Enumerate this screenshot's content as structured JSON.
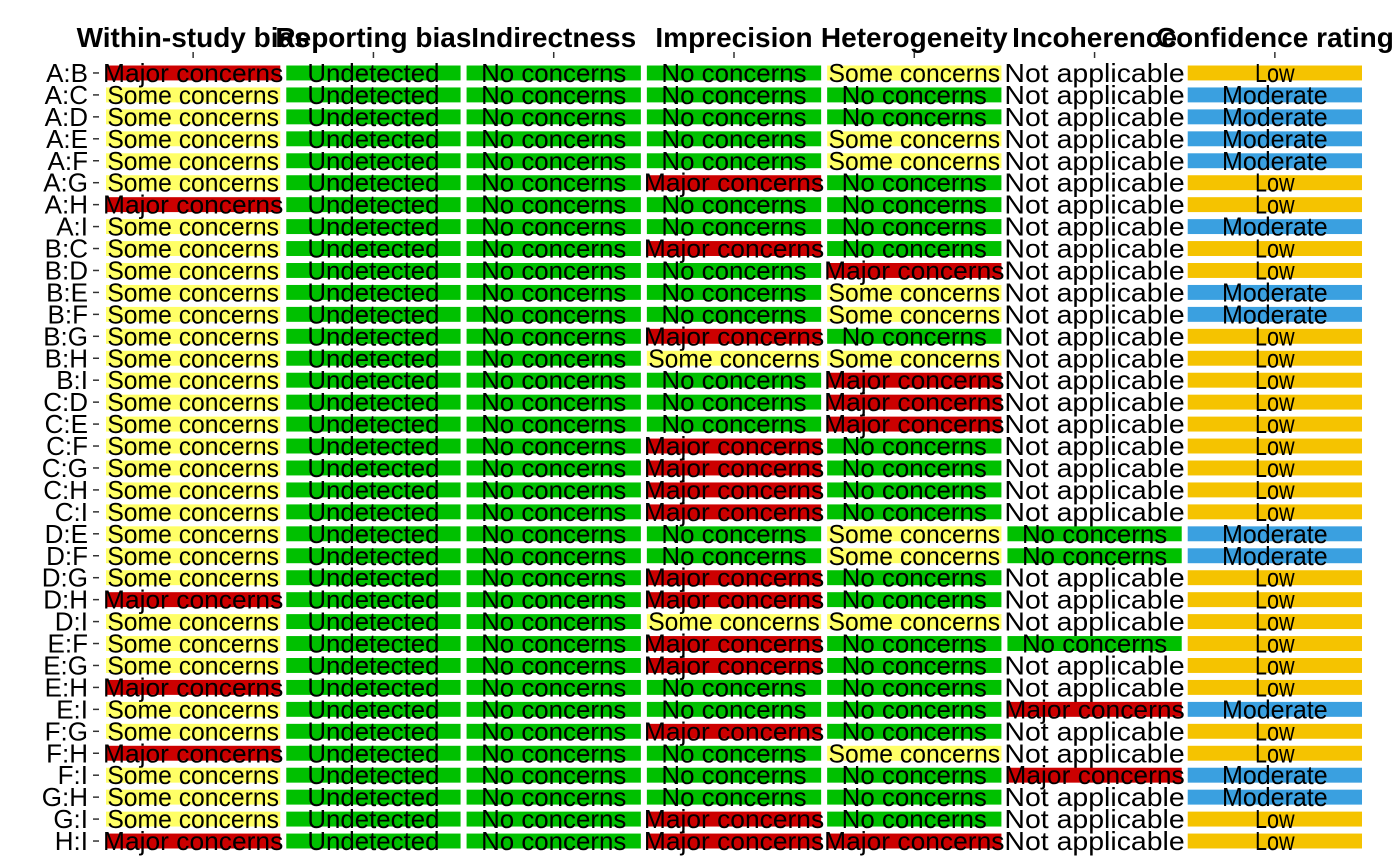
{
  "chart_data": {
    "type": "table",
    "title": "",
    "columns": [
      "Within-study bias",
      "Reporting bias",
      "Indirectness",
      "Imprecision",
      "Heterogeneity",
      "Incoherence",
      "Confidence rating"
    ],
    "level_colors": {
      "Major concerns": "#cc0000",
      "Some concerns": "#ffff66",
      "No concerns": "#00c000",
      "Undetected": "#00c000",
      "Not applicable": "#ffffff",
      "Low": "#f5c300",
      "Moderate": "#3aa0e0"
    },
    "rows": [
      {
        "label": "A:B",
        "values": [
          "Major concerns",
          "Undetected",
          "No concerns",
          "No concerns",
          "Some concerns",
          "Not applicable",
          "Low"
        ]
      },
      {
        "label": "A:C",
        "values": [
          "Some concerns",
          "Undetected",
          "No concerns",
          "No concerns",
          "No concerns",
          "Not applicable",
          "Moderate"
        ]
      },
      {
        "label": "A:D",
        "values": [
          "Some concerns",
          "Undetected",
          "No concerns",
          "No concerns",
          "No concerns",
          "Not applicable",
          "Moderate"
        ]
      },
      {
        "label": "A:E",
        "values": [
          "Some concerns",
          "Undetected",
          "No concerns",
          "No concerns",
          "Some concerns",
          "Not applicable",
          "Moderate"
        ]
      },
      {
        "label": "A:F",
        "values": [
          "Some concerns",
          "Undetected",
          "No concerns",
          "No concerns",
          "Some concerns",
          "Not applicable",
          "Moderate"
        ]
      },
      {
        "label": "A:G",
        "values": [
          "Some concerns",
          "Undetected",
          "No concerns",
          "Major concerns",
          "No concerns",
          "Not applicable",
          "Low"
        ]
      },
      {
        "label": "A:H",
        "values": [
          "Major concerns",
          "Undetected",
          "No concerns",
          "No concerns",
          "No concerns",
          "Not applicable",
          "Low"
        ]
      },
      {
        "label": "A:I",
        "values": [
          "Some concerns",
          "Undetected",
          "No concerns",
          "No concerns",
          "No concerns",
          "Not applicable",
          "Moderate"
        ]
      },
      {
        "label": "B:C",
        "values": [
          "Some concerns",
          "Undetected",
          "No concerns",
          "Major concerns",
          "No concerns",
          "Not applicable",
          "Low"
        ]
      },
      {
        "label": "B:D",
        "values": [
          "Some concerns",
          "Undetected",
          "No concerns",
          "No concerns",
          "Major concerns",
          "Not applicable",
          "Low"
        ]
      },
      {
        "label": "B:E",
        "values": [
          "Some concerns",
          "Undetected",
          "No concerns",
          "No concerns",
          "Some concerns",
          "Not applicable",
          "Moderate"
        ]
      },
      {
        "label": "B:F",
        "values": [
          "Some concerns",
          "Undetected",
          "No concerns",
          "No concerns",
          "Some concerns",
          "Not applicable",
          "Moderate"
        ]
      },
      {
        "label": "B:G",
        "values": [
          "Some concerns",
          "Undetected",
          "No concerns",
          "Major concerns",
          "No concerns",
          "Not applicable",
          "Low"
        ]
      },
      {
        "label": "B:H",
        "values": [
          "Some concerns",
          "Undetected",
          "No concerns",
          "Some concerns",
          "Some concerns",
          "Not applicable",
          "Low"
        ]
      },
      {
        "label": "B:I",
        "values": [
          "Some concerns",
          "Undetected",
          "No concerns",
          "No concerns",
          "Major concerns",
          "Not applicable",
          "Low"
        ]
      },
      {
        "label": "C:D",
        "values": [
          "Some concerns",
          "Undetected",
          "No concerns",
          "No concerns",
          "Major concerns",
          "Not applicable",
          "Low"
        ]
      },
      {
        "label": "C:E",
        "values": [
          "Some concerns",
          "Undetected",
          "No concerns",
          "No concerns",
          "Major concerns",
          "Not applicable",
          "Low"
        ]
      },
      {
        "label": "C:F",
        "values": [
          "Some concerns",
          "Undetected",
          "No concerns",
          "Major concerns",
          "No concerns",
          "Not applicable",
          "Low"
        ]
      },
      {
        "label": "C:G",
        "values": [
          "Some concerns",
          "Undetected",
          "No concerns",
          "Major concerns",
          "No concerns",
          "Not applicable",
          "Low"
        ]
      },
      {
        "label": "C:H",
        "values": [
          "Some concerns",
          "Undetected",
          "No concerns",
          "Major concerns",
          "No concerns",
          "Not applicable",
          "Low"
        ]
      },
      {
        "label": "C:I",
        "values": [
          "Some concerns",
          "Undetected",
          "No concerns",
          "Major concerns",
          "No concerns",
          "Not applicable",
          "Low"
        ]
      },
      {
        "label": "D:E",
        "values": [
          "Some concerns",
          "Undetected",
          "No concerns",
          "No concerns",
          "Some concerns",
          "No concerns",
          "Moderate"
        ]
      },
      {
        "label": "D:F",
        "values": [
          "Some concerns",
          "Undetected",
          "No concerns",
          "No concerns",
          "Some concerns",
          "No concerns",
          "Moderate"
        ]
      },
      {
        "label": "D:G",
        "values": [
          "Some concerns",
          "Undetected",
          "No concerns",
          "Major concerns",
          "No concerns",
          "Not applicable",
          "Low"
        ]
      },
      {
        "label": "D:H",
        "values": [
          "Major concerns",
          "Undetected",
          "No concerns",
          "Major concerns",
          "No concerns",
          "Not applicable",
          "Low"
        ]
      },
      {
        "label": "D:I",
        "values": [
          "Some concerns",
          "Undetected",
          "No concerns",
          "Some concerns",
          "Some concerns",
          "Not applicable",
          "Low"
        ]
      },
      {
        "label": "E:F",
        "values": [
          "Some concerns",
          "Undetected",
          "No concerns",
          "Major concerns",
          "No concerns",
          "No concerns",
          "Low"
        ]
      },
      {
        "label": "E:G",
        "values": [
          "Some concerns",
          "Undetected",
          "No concerns",
          "Major concerns",
          "No concerns",
          "Not applicable",
          "Low"
        ]
      },
      {
        "label": "E:H",
        "values": [
          "Major concerns",
          "Undetected",
          "No concerns",
          "No concerns",
          "No concerns",
          "Not applicable",
          "Low"
        ]
      },
      {
        "label": "E:I",
        "values": [
          "Some concerns",
          "Undetected",
          "No concerns",
          "No concerns",
          "No concerns",
          "Major concerns",
          "Moderate"
        ]
      },
      {
        "label": "F:G",
        "values": [
          "Some concerns",
          "Undetected",
          "No concerns",
          "Major concerns",
          "No concerns",
          "Not applicable",
          "Low"
        ]
      },
      {
        "label": "F:H",
        "values": [
          "Major concerns",
          "Undetected",
          "No concerns",
          "No concerns",
          "Some concerns",
          "Not applicable",
          "Low"
        ]
      },
      {
        "label": "F:I",
        "values": [
          "Some concerns",
          "Undetected",
          "No concerns",
          "No concerns",
          "No concerns",
          "Major concerns",
          "Moderate"
        ]
      },
      {
        "label": "G:H",
        "values": [
          "Some concerns",
          "Undetected",
          "No concerns",
          "No concerns",
          "No concerns",
          "Not applicable",
          "Moderate"
        ]
      },
      {
        "label": "G:I",
        "values": [
          "Some concerns",
          "Undetected",
          "No concerns",
          "Major concerns",
          "No concerns",
          "Not applicable",
          "Low"
        ]
      },
      {
        "label": "H:I",
        "values": [
          "Major concerns",
          "Undetected",
          "No concerns",
          "Major concerns",
          "Major concerns",
          "Not applicable",
          "Low"
        ]
      }
    ],
    "legend": "none",
    "grid": false
  }
}
